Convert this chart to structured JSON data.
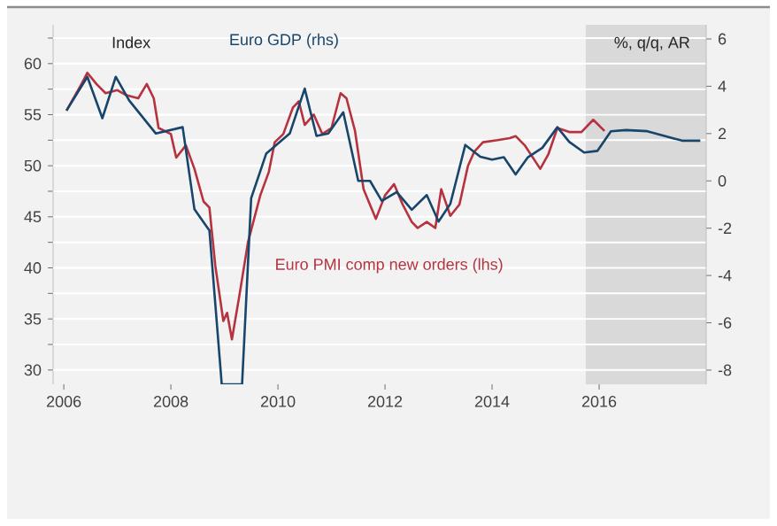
{
  "chart_data": {
    "type": "line",
    "ylabel": "Index",
    "y2label": "%, q/q, AR",
    "xlim": [
      2005.8,
      2018.0
    ],
    "xticks": [
      2006,
      2008,
      2010,
      2012,
      2014,
      2016
    ],
    "ylim": [
      28.6,
      63.8
    ],
    "yticks": [
      30,
      {
        "value": 32.5,
        "label": null
      },
      35,
      {
        "value": 37.5,
        "label": null
      },
      40,
      {
        "value": 42.5,
        "label": null
      },
      45,
      {
        "value": 47.5,
        "label": null
      },
      50,
      {
        "value": 52.5,
        "label": null
      },
      55,
      {
        "value": 57.5,
        "label": null
      },
      60,
      {
        "value": 62.5,
        "label": null
      }
    ],
    "y2lim": [
      -8.6,
      6.6
    ],
    "y2ticks": [
      -8,
      -6,
      -4,
      -2,
      0,
      2,
      4,
      6
    ],
    "grid": "y",
    "bands": [
      {
        "axis": "x",
        "from": 2015.75,
        "to": 2018.0,
        "color": "#d9d9d9"
      }
    ],
    "series": [
      {
        "name": "Euro PMI comp new orders (lhs)",
        "color": "#b5323e",
        "x": [
          2006.05,
          2006.33,
          2006.44,
          2006.61,
          2006.78,
          2007.0,
          2007.17,
          2007.39,
          2007.55,
          2007.68,
          2007.77,
          2008.0,
          2008.1,
          2008.28,
          2008.44,
          2008.61,
          2008.72,
          2008.83,
          2008.98,
          2009.05,
          2009.14,
          2009.28,
          2009.44,
          2009.67,
          2009.83,
          2009.94,
          2010.1,
          2010.28,
          2010.39,
          2010.5,
          2010.67,
          2010.83,
          2011.0,
          2011.17,
          2011.28,
          2011.44,
          2011.6,
          2011.83,
          2012.0,
          2012.17,
          2012.33,
          2012.5,
          2012.61,
          2012.78,
          2012.94,
          2013.05,
          2013.22,
          2013.39,
          2013.55,
          2013.67,
          2013.83,
          2014.1,
          2014.33,
          2014.44,
          2014.61,
          2014.9,
          2015.05,
          2015.22,
          2015.44,
          2015.67,
          2015.89,
          2016.1
        ],
        "values": [
          55.4,
          58.0,
          59.1,
          58.0,
          57.1,
          57.4,
          56.9,
          56.6,
          58.0,
          56.6,
          53.7,
          53.1,
          50.8,
          52.0,
          49.7,
          46.5,
          45.9,
          40.2,
          34.8,
          35.6,
          33.0,
          37.3,
          42.5,
          47.1,
          49.4,
          52.3,
          53.1,
          55.7,
          56.3,
          54.0,
          55.0,
          53.1,
          53.7,
          57.1,
          56.6,
          53.4,
          47.7,
          44.8,
          47.1,
          48.2,
          46.2,
          44.5,
          43.9,
          44.5,
          43.9,
          47.7,
          45.1,
          46.2,
          50.0,
          51.4,
          52.3,
          52.5,
          52.7,
          52.9,
          52.0,
          49.7,
          51.1,
          53.7,
          53.3,
          53.3,
          54.5,
          53.4
        ]
      },
      {
        "name": "Euro GDP (rhs)",
        "color": "#17456b",
        "axis": "y2",
        "x": [
          2006.05,
          2006.44,
          2006.72,
          2006.97,
          2007.22,
          2007.72,
          2008.22,
          2008.44,
          2008.72,
          2008.95,
          2009.33,
          2009.5,
          2009.78,
          2010.22,
          2010.5,
          2010.72,
          2010.94,
          2011.22,
          2011.5,
          2011.72,
          2011.94,
          2012.22,
          2012.5,
          2012.78,
          2013.0,
          2013.22,
          2013.5,
          2013.78,
          2014.0,
          2014.22,
          2014.44,
          2014.67,
          2014.94,
          2015.22,
          2015.44,
          2015.72,
          2015.97,
          2016.22,
          2016.5,
          2016.9,
          2017.22,
          2017.55,
          2017.89
        ],
        "values": [
          2.97,
          4.4,
          2.65,
          4.4,
          3.4,
          2.0,
          2.27,
          -1.2,
          -2.1,
          -8.6,
          -8.6,
          -0.73,
          1.15,
          2.0,
          3.9,
          1.9,
          2.0,
          2.9,
          0.0,
          0.0,
          -0.85,
          -0.47,
          -1.22,
          -0.6,
          -1.72,
          -0.97,
          1.52,
          1.02,
          0.9,
          1.0,
          0.27,
          1.0,
          1.4,
          2.27,
          1.65,
          1.2,
          1.27,
          2.1,
          2.15,
          2.1,
          1.9,
          1.7,
          1.7
        ]
      }
    ]
  }
}
